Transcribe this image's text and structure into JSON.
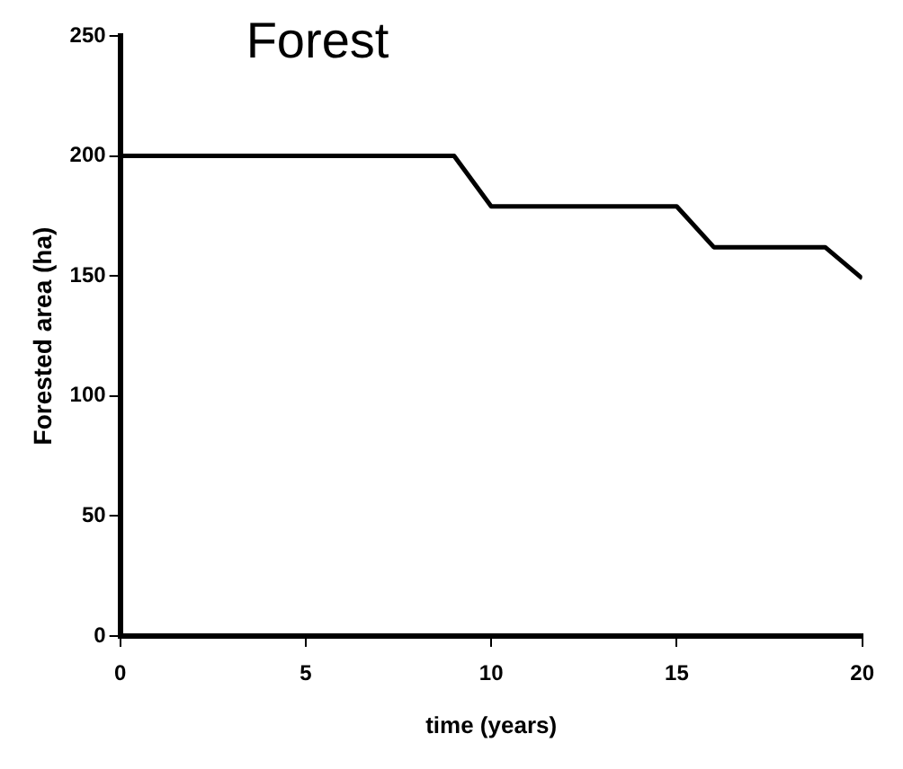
{
  "chart_data": {
    "type": "line",
    "title": "Forest",
    "xlabel": "time (years)",
    "ylabel": "Forested area (ha)",
    "x": [
      0,
      9,
      10,
      15,
      16,
      19,
      20
    ],
    "series": [
      {
        "color": "#000000",
        "values": [
          200,
          200,
          179,
          179,
          162,
          162,
          149
        ]
      }
    ],
    "xlim": [
      0,
      20
    ],
    "xticks": [
      0,
      5,
      10,
      15,
      20
    ],
    "ylim": [
      0,
      250
    ],
    "yticks": [
      0,
      50,
      100,
      150,
      200,
      250
    ],
    "grid": false,
    "legend": false,
    "marker": "none",
    "line_style": "solid"
  }
}
